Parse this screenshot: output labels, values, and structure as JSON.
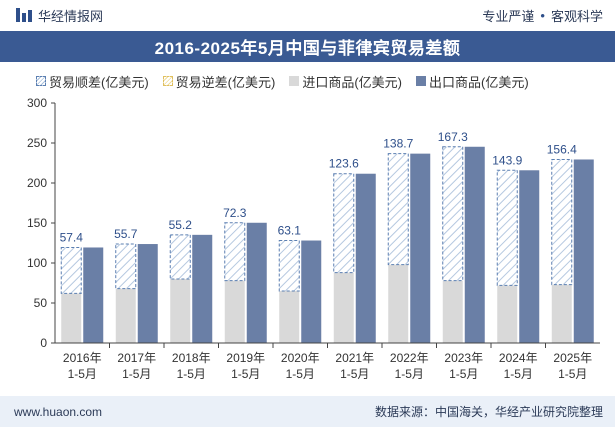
{
  "header": {
    "brand": "华经情报网",
    "link1": "专业严谨",
    "separator": "•",
    "link2": "客观科学"
  },
  "chart_data": {
    "type": "bar",
    "title": "2016-2025年5月中国与菲律宾贸易差额",
    "categories": [
      [
        "2016年",
        "1-5月"
      ],
      [
        "2017年",
        "1-5月"
      ],
      [
        "2018年",
        "1-5月"
      ],
      [
        "2019年",
        "1-5月"
      ],
      [
        "2020年",
        "1-5月"
      ],
      [
        "2021年",
        "1-5月"
      ],
      [
        "2022年",
        "1-5月"
      ],
      [
        "2023年",
        "1-5月"
      ],
      [
        "2024年",
        "1-5月"
      ],
      [
        "2025年",
        "1-5月"
      ]
    ],
    "ylim": [
      0,
      300
    ],
    "yticks": [
      0,
      50,
      100,
      150,
      200,
      250,
      300
    ],
    "grid": false,
    "legend_position": "top",
    "series": [
      {
        "name": "贸易顺差(亿美元)",
        "values": [
          57.4,
          55.7,
          55.2,
          72.3,
          63.1,
          123.6,
          138.7,
          167.3,
          143.9,
          156.4
        ],
        "color": "#a8bfdc"
      },
      {
        "name": "贸易逆差(亿美元)",
        "values": [
          0,
          0,
          0,
          0,
          0,
          0,
          0,
          0,
          0,
          0
        ],
        "color": "#f0dc9a"
      },
      {
        "name": "进口商品(亿美元)",
        "values": [
          62,
          68,
          80,
          78,
          65,
          88,
          98,
          78,
          72,
          73
        ],
        "color": "#d9d9d9"
      },
      {
        "name": "出口商品(亿美元)",
        "values": [
          119.4,
          123.7,
          135.2,
          150.3,
          128.1,
          211.6,
          236.7,
          245.3,
          215.9,
          229.4
        ],
        "color": "#6a7fa6"
      }
    ]
  },
  "footer": {
    "website": "www.huaon.com",
    "source": "数据来源：中国海关，华经产业研究院整理"
  }
}
